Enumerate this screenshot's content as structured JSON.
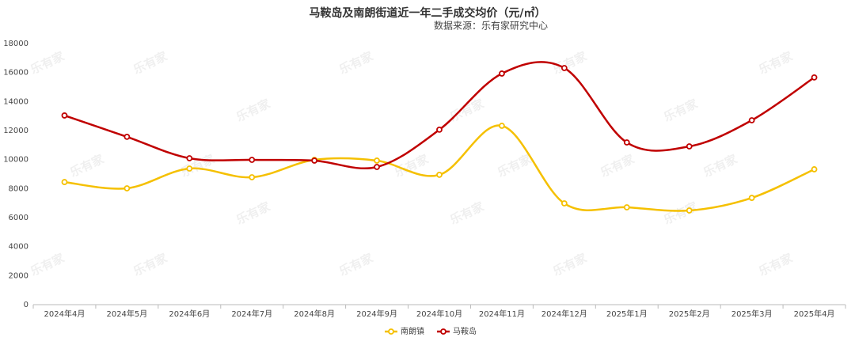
{
  "chart_data": {
    "type": "line",
    "title": "马鞍岛及南朗街道近一年二手成交均价（元/㎡）",
    "subtitle": "数据来源：乐有家研究中心",
    "watermark": "乐有家",
    "categories": [
      "2024年4月",
      "2024年5月",
      "2024年6月",
      "2024年7月",
      "2024年8月",
      "2024年9月",
      "2024年10月",
      "2024年11月",
      "2024年12月",
      "2025年1月",
      "2025年2月",
      "2025年3月",
      "2025年4月"
    ],
    "series": [
      {
        "name": "南朗镇",
        "color": "#f5c000",
        "values": [
          8450,
          8020,
          9380,
          8780,
          9980,
          9930,
          8950,
          12330,
          6980,
          6710,
          6490,
          7360,
          9330
        ]
      },
      {
        "name": "马鞍岛",
        "color": "#c00000",
        "values": [
          13040,
          11570,
          10090,
          9980,
          9930,
          9490,
          12060,
          15930,
          16310,
          11180,
          10910,
          12710,
          15660
        ]
      }
    ],
    "ylim": [
      0,
      18000
    ],
    "yticks": [
      0,
      2000,
      4000,
      6000,
      8000,
      10000,
      12000,
      14000,
      16000,
      18000
    ],
    "smooth": true,
    "legend": "bottom"
  }
}
